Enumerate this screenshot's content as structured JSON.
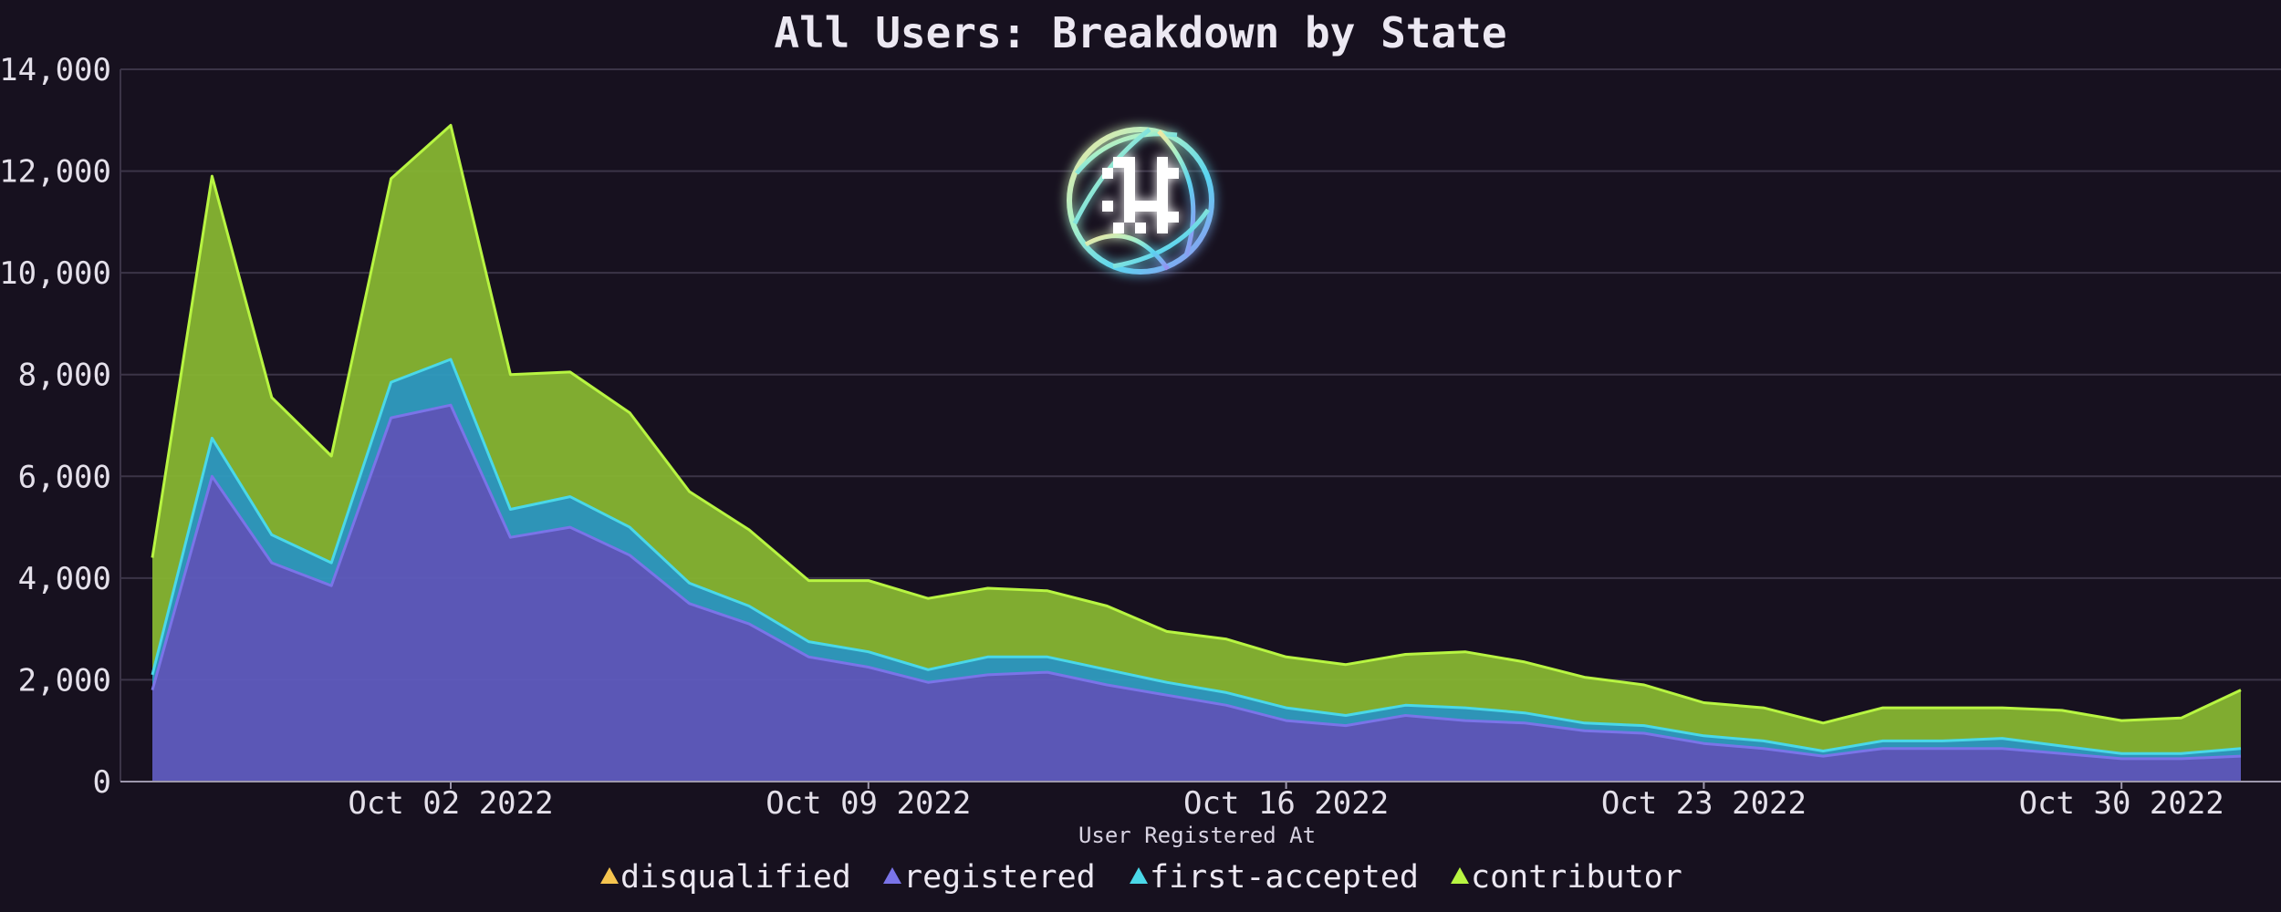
{
  "chart_data": {
    "type": "area",
    "stacked": true,
    "title": "All Users: Breakdown by State",
    "xlabel": "User Registered At",
    "ylabel": "",
    "ylim": [
      0,
      14000
    ],
    "yticks": [
      0,
      2000,
      4000,
      6000,
      8000,
      10000,
      12000,
      14000
    ],
    "ytick_labels": [
      "0",
      "2,000",
      "4,000",
      "6,000",
      "8,000",
      "10,000",
      "12,000",
      "14,000"
    ],
    "xticks": [
      {
        "date": "2022-10-02",
        "label": "Oct 02 2022"
      },
      {
        "date": "2022-10-09",
        "label": "Oct 09 2022"
      },
      {
        "date": "2022-10-16",
        "label": "Oct 16 2022"
      },
      {
        "date": "2022-10-23",
        "label": "Oct 23 2022"
      },
      {
        "date": "2022-10-30",
        "label": "Oct 30 2022"
      }
    ],
    "x": [
      "2022-09-27",
      "2022-09-28",
      "2022-09-29",
      "2022-09-30",
      "2022-10-01",
      "2022-10-02",
      "2022-10-03",
      "2022-10-04",
      "2022-10-05",
      "2022-10-06",
      "2022-10-07",
      "2022-10-08",
      "2022-10-09",
      "2022-10-10",
      "2022-10-11",
      "2022-10-12",
      "2022-10-13",
      "2022-10-14",
      "2022-10-15",
      "2022-10-16",
      "2022-10-17",
      "2022-10-18",
      "2022-10-19",
      "2022-10-20",
      "2022-10-21",
      "2022-10-22",
      "2022-10-23",
      "2022-10-24",
      "2022-10-25",
      "2022-10-26",
      "2022-10-27",
      "2022-10-28",
      "2022-10-29",
      "2022-10-30",
      "2022-10-31",
      "2022-11-01"
    ],
    "series": [
      {
        "name": "disqualified",
        "color": "#f5c44f",
        "values": [
          0,
          0,
          0,
          0,
          0,
          0,
          0,
          0,
          0,
          0,
          0,
          0,
          0,
          0,
          0,
          0,
          0,
          0,
          0,
          0,
          0,
          0,
          0,
          0,
          0,
          0,
          0,
          0,
          0,
          0,
          0,
          0,
          0,
          0,
          0,
          0
        ]
      },
      {
        "name": "registered",
        "color": "#7a74e8",
        "fill": "#5f5cbf",
        "values": [
          1800,
          6000,
          4300,
          3850,
          7150,
          7400,
          4800,
          5000,
          4450,
          3500,
          3100,
          2450,
          2250,
          1950,
          2100,
          2150,
          1900,
          1700,
          1500,
          1200,
          1100,
          1300,
          1200,
          1150,
          1000,
          950,
          750,
          650,
          500,
          650,
          650,
          650,
          550,
          450,
          450,
          500
        ]
      },
      {
        "name": "first-accepted",
        "color": "#4ad8e8",
        "fill": "#2f9cc0",
        "values": [
          300,
          750,
          550,
          450,
          700,
          900,
          550,
          600,
          550,
          400,
          350,
          300,
          300,
          250,
          350,
          300,
          300,
          250,
          250,
          250,
          200,
          200,
          250,
          200,
          150,
          150,
          150,
          150,
          100,
          150,
          150,
          200,
          150,
          100,
          100,
          150
        ]
      },
      {
        "name": "contributor",
        "color": "#b8f542",
        "fill": "#86b532",
        "values": [
          2300,
          5150,
          2700,
          2100,
          4000,
          4600,
          2650,
          2450,
          2250,
          1800,
          1500,
          1200,
          1400,
          1400,
          1350,
          1300,
          1250,
          1000,
          1050,
          1000,
          1000,
          1000,
          1100,
          1000,
          900,
          800,
          650,
          650,
          550,
          650,
          650,
          600,
          700,
          650,
          700,
          1150
        ]
      }
    ],
    "legend": {
      "position": "bottom",
      "entries": [
        "disqualified",
        "registered",
        "first-accepted",
        "contributor"
      ]
    },
    "grid": {
      "y": true,
      "x": false
    }
  },
  "logo": {
    "icon": "pixel-globe-icon"
  }
}
